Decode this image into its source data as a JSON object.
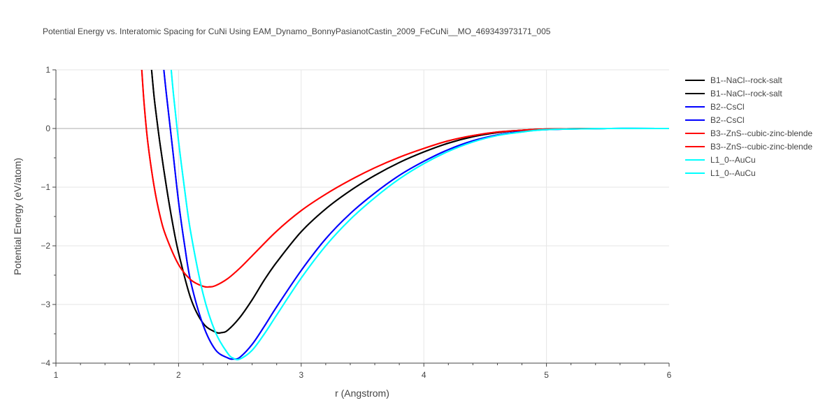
{
  "chart_data": {
    "type": "line",
    "title": "Potential Energy vs. Interatomic Spacing for CuNi Using EAM_Dynamo_BonnyPasianotCastin_2009_FeCuNi__MO_469343973171_005",
    "xlabel": "r (Angstrom)",
    "ylabel": "Potential Energy (eV/atom)",
    "xlim": [
      1,
      6
    ],
    "ylim": [
      -4,
      1
    ],
    "x_ticks": [
      "1",
      "2",
      "3",
      "4",
      "5",
      "6"
    ],
    "y_ticks": [
      "1",
      "0",
      "−1",
      "−2",
      "−3",
      "−4"
    ],
    "grid": true,
    "legend_position": "right",
    "series": [
      {
        "name": "B1--NaCl--rock-salt",
        "color": "#000000",
        "x": [
          1.78,
          1.8,
          1.82,
          1.85,
          1.9,
          1.95,
          2.0,
          2.1,
          2.2,
          2.3,
          2.35,
          2.4,
          2.5,
          2.6,
          2.7,
          2.8,
          3.0,
          3.2,
          3.4,
          3.6,
          3.8,
          4.0,
          4.2,
          4.4,
          4.6,
          4.8,
          5.0,
          5.5,
          6.0
        ],
        "y": [
          1.0,
          0.55,
          0.2,
          -0.28,
          -0.98,
          -1.6,
          -2.12,
          -2.9,
          -3.32,
          -3.47,
          -3.48,
          -3.44,
          -3.22,
          -2.92,
          -2.58,
          -2.28,
          -1.76,
          -1.37,
          -1.06,
          -0.8,
          -0.58,
          -0.4,
          -0.25,
          -0.14,
          -0.07,
          -0.03,
          -0.01,
          0.0,
          0.0
        ]
      },
      {
        "name": "B1--NaCl--rock-salt",
        "color": "#000000",
        "x": [
          1.78,
          1.8,
          1.82,
          1.85,
          1.9,
          1.95,
          2.0,
          2.1,
          2.2,
          2.3,
          2.35,
          2.4,
          2.5,
          2.6,
          2.7,
          2.8,
          3.0,
          3.2,
          3.4,
          3.6,
          3.8,
          4.0,
          4.2,
          4.4,
          4.6,
          4.8,
          5.0,
          5.5,
          6.0
        ],
        "y": [
          1.0,
          0.55,
          0.2,
          -0.28,
          -0.98,
          -1.6,
          -2.12,
          -2.9,
          -3.32,
          -3.47,
          -3.48,
          -3.44,
          -3.22,
          -2.92,
          -2.58,
          -2.28,
          -1.76,
          -1.37,
          -1.06,
          -0.8,
          -0.58,
          -0.4,
          -0.25,
          -0.14,
          -0.07,
          -0.03,
          -0.01,
          0.0,
          0.0
        ]
      },
      {
        "name": "B2--CsCl",
        "color": "#0000ff",
        "x": [
          1.88,
          1.9,
          1.95,
          2.0,
          2.05,
          2.1,
          2.2,
          2.3,
          2.4,
          2.45,
          2.5,
          2.6,
          2.7,
          2.8,
          3.0,
          3.2,
          3.4,
          3.6,
          3.8,
          4.0,
          4.2,
          4.4,
          4.6,
          4.8,
          5.0,
          5.5,
          6.0
        ],
        "y": [
          1.0,
          0.6,
          -0.32,
          -1.25,
          -2.0,
          -2.62,
          -3.35,
          -3.77,
          -3.91,
          -3.93,
          -3.9,
          -3.68,
          -3.37,
          -3.04,
          -2.42,
          -1.88,
          -1.45,
          -1.1,
          -0.8,
          -0.56,
          -0.36,
          -0.21,
          -0.11,
          -0.05,
          -0.02,
          0.0,
          0.0
        ]
      },
      {
        "name": "B2--CsCl",
        "color": "#0000ff",
        "x": [
          1.88,
          1.9,
          1.95,
          2.0,
          2.05,
          2.1,
          2.2,
          2.3,
          2.4,
          2.45,
          2.5,
          2.6,
          2.7,
          2.8,
          3.0,
          3.2,
          3.4,
          3.6,
          3.8,
          4.0,
          4.2,
          4.4,
          4.6,
          4.8,
          5.0,
          5.5,
          6.0
        ],
        "y": [
          1.0,
          0.6,
          -0.32,
          -1.25,
          -2.0,
          -2.62,
          -3.35,
          -3.77,
          -3.91,
          -3.93,
          -3.9,
          -3.68,
          -3.37,
          -3.04,
          -2.42,
          -1.88,
          -1.45,
          -1.1,
          -0.8,
          -0.56,
          -0.36,
          -0.21,
          -0.11,
          -0.05,
          -0.02,
          0.0,
          0.0
        ]
      },
      {
        "name": "B3--ZnS--cubic-zinc-blende",
        "color": "#ff0000",
        "x": [
          1.7,
          1.72,
          1.75,
          1.8,
          1.85,
          1.9,
          2.0,
          2.1,
          2.2,
          2.25,
          2.3,
          2.4,
          2.5,
          2.6,
          2.8,
          3.0,
          3.2,
          3.4,
          3.6,
          3.8,
          4.0,
          4.2,
          4.4,
          4.6,
          4.8,
          5.0,
          5.5,
          6.0
        ],
        "y": [
          1.0,
          0.4,
          -0.25,
          -0.98,
          -1.5,
          -1.85,
          -2.32,
          -2.58,
          -2.69,
          -2.7,
          -2.68,
          -2.56,
          -2.38,
          -2.17,
          -1.75,
          -1.4,
          -1.12,
          -0.88,
          -0.67,
          -0.49,
          -0.34,
          -0.21,
          -0.12,
          -0.06,
          -0.03,
          -0.01,
          0.0,
          0.0
        ]
      },
      {
        "name": "B3--ZnS--cubic-zinc-blende",
        "color": "#ff0000",
        "x": [
          1.7,
          1.72,
          1.75,
          1.8,
          1.85,
          1.9,
          2.0,
          2.1,
          2.2,
          2.25,
          2.3,
          2.4,
          2.5,
          2.6,
          2.8,
          3.0,
          3.2,
          3.4,
          3.6,
          3.8,
          4.0,
          4.2,
          4.4,
          4.6,
          4.8,
          5.0,
          5.5,
          6.0
        ],
        "y": [
          1.0,
          0.4,
          -0.25,
          -0.98,
          -1.5,
          -1.85,
          -2.32,
          -2.58,
          -2.69,
          -2.7,
          -2.68,
          -2.56,
          -2.38,
          -2.17,
          -1.75,
          -1.4,
          -1.12,
          -0.88,
          -0.67,
          -0.49,
          -0.34,
          -0.21,
          -0.12,
          -0.06,
          -0.03,
          -0.01,
          0.0,
          0.0
        ]
      },
      {
        "name": "L1_0--AuCu",
        "color": "#00ffff",
        "x": [
          1.94,
          1.96,
          2.0,
          2.05,
          2.1,
          2.2,
          2.3,
          2.4,
          2.45,
          2.5,
          2.6,
          2.7,
          2.8,
          3.0,
          3.2,
          3.4,
          3.6,
          3.8,
          4.0,
          4.2,
          4.4,
          4.6,
          4.8,
          5.0,
          5.5,
          6.0
        ],
        "y": [
          1.0,
          0.55,
          -0.22,
          -1.05,
          -1.78,
          -2.82,
          -3.47,
          -3.83,
          -3.92,
          -3.93,
          -3.78,
          -3.5,
          -3.18,
          -2.55,
          -2.0,
          -1.55,
          -1.18,
          -0.86,
          -0.6,
          -0.39,
          -0.23,
          -0.12,
          -0.06,
          -0.02,
          0.0,
          0.0
        ]
      },
      {
        "name": "L1_0--AuCu",
        "color": "#00ffff",
        "x": [
          1.94,
          1.96,
          2.0,
          2.05,
          2.1,
          2.2,
          2.3,
          2.4,
          2.45,
          2.5,
          2.6,
          2.7,
          2.8,
          3.0,
          3.2,
          3.4,
          3.6,
          3.8,
          4.0,
          4.2,
          4.4,
          4.6,
          4.8,
          5.0,
          5.5,
          6.0
        ],
        "y": [
          1.0,
          0.55,
          -0.22,
          -1.05,
          -1.78,
          -2.82,
          -3.47,
          -3.83,
          -3.92,
          -3.93,
          -3.78,
          -3.5,
          -3.18,
          -2.55,
          -2.0,
          -1.55,
          -1.18,
          -0.86,
          -0.6,
          -0.39,
          -0.23,
          -0.12,
          -0.06,
          -0.02,
          0.0,
          0.0
        ]
      }
    ]
  }
}
